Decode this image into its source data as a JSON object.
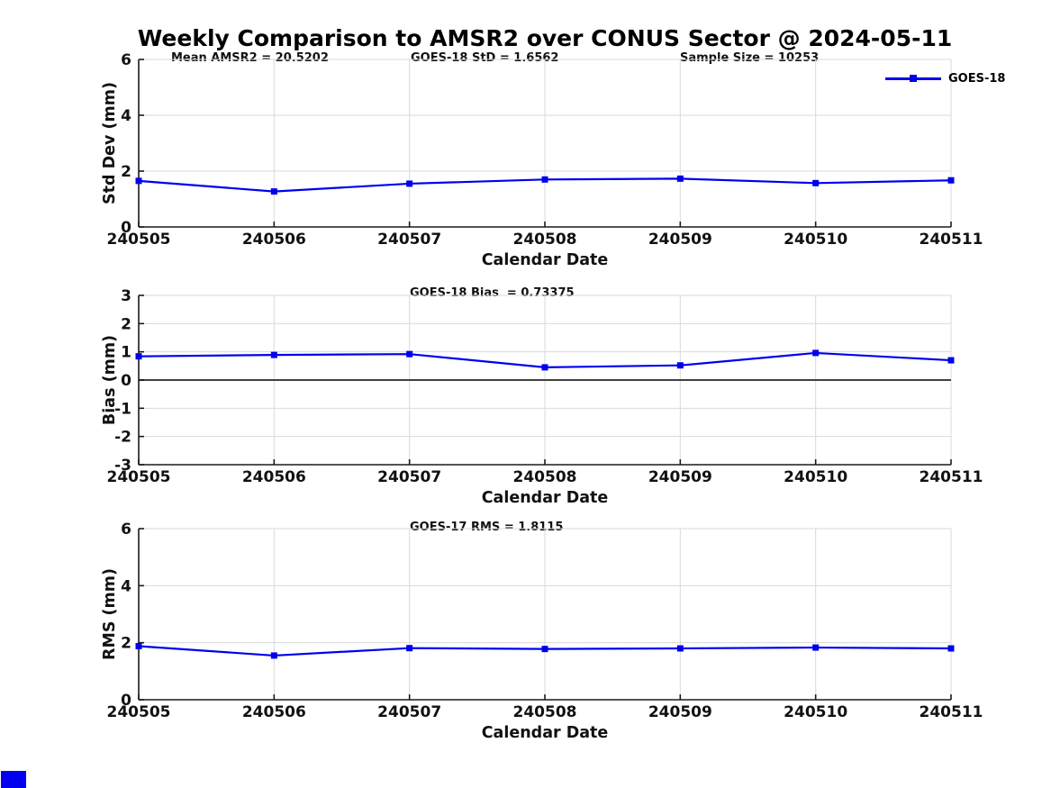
{
  "title": "Weekly Comparison to AMSR2 over CONUS Sector @ 2024-05-11",
  "legend": {
    "label": "GOES-18"
  },
  "colors": {
    "series": "#0000EE",
    "grid": "#d9d9d9",
    "axis": "#1a1a1a",
    "text": "#111111",
    "zero_line": "#404040"
  },
  "chart_data": [
    {
      "type": "line",
      "name": "std-dev-panel",
      "annotations": [
        "Mean AMSR2 = 20.5202",
        "GOES-18 StD = 1.6562",
        "Sample Size = 10253"
      ],
      "categories": [
        "240505",
        "240506",
        "240507",
        "240508",
        "240509",
        "240510",
        "240511"
      ],
      "series": [
        {
          "name": "GOES-18",
          "values": [
            1.65,
            1.27,
            1.55,
            1.7,
            1.73,
            1.57,
            1.67
          ]
        }
      ],
      "xlabel": "Calendar Date",
      "ylabel": "Std Dev (mm)",
      "ylim": [
        0,
        6
      ],
      "yticks": [
        0,
        2,
        4,
        6
      ],
      "grid": true,
      "zero_line": false,
      "legend_position": "top-right",
      "legend_entries": [
        "GOES-18"
      ]
    },
    {
      "type": "line",
      "name": "bias-panel",
      "annotations": [
        "GOES-18 Bias  = 0.73375"
      ],
      "categories": [
        "240505",
        "240506",
        "240507",
        "240508",
        "240509",
        "240510",
        "240511"
      ],
      "series": [
        {
          "name": "GOES-18",
          "values": [
            0.84,
            0.89,
            0.92,
            0.45,
            0.52,
            0.96,
            0.7
          ]
        }
      ],
      "xlabel": "Calendar Date",
      "ylabel": "Bias (mm)",
      "ylim": [
        -3,
        3
      ],
      "yticks": [
        -3,
        -2,
        -1,
        0,
        1,
        2,
        3
      ],
      "grid": true,
      "zero_line": true
    },
    {
      "type": "line",
      "name": "rms-panel",
      "annotations": [
        "GOES-17 RMS = 1.8115"
      ],
      "categories": [
        "240505",
        "240506",
        "240507",
        "240508",
        "240509",
        "240510",
        "240511"
      ],
      "series": [
        {
          "name": "GOES-18",
          "values": [
            1.88,
            1.55,
            1.81,
            1.78,
            1.8,
            1.83,
            1.8
          ]
        }
      ],
      "xlabel": "Calendar Date",
      "ylabel": "RMS (mm)",
      "ylim": [
        0,
        6
      ],
      "yticks": [
        0,
        2,
        4,
        6
      ],
      "grid": true,
      "zero_line": false
    }
  ]
}
